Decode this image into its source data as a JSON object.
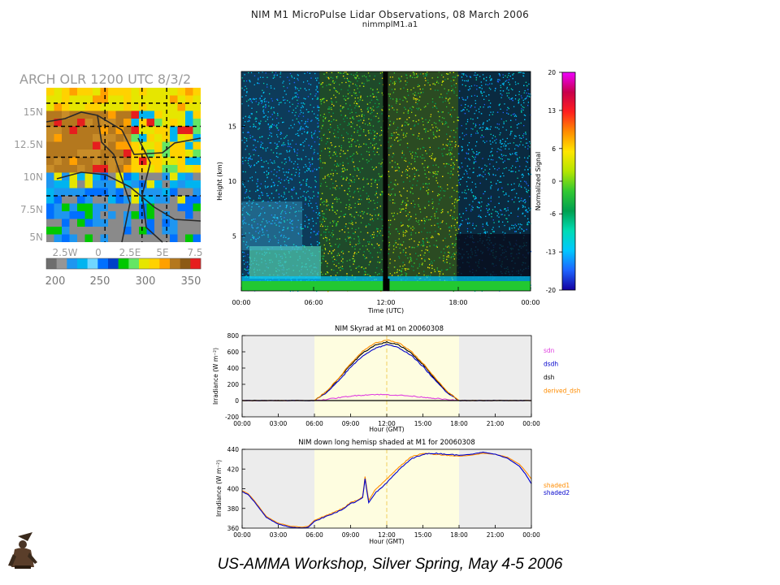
{
  "header": {
    "title": "NIM M1 MicroPulse Lidar Observations, 08 March 2006",
    "subtitle": "nimmplM1.a1"
  },
  "footer": {
    "text": "US-AMMA Workshop, Silver Spring, May 4-5 2006"
  },
  "olr_map": {
    "title": "ARCH OLR 1200 UTC 8/3/2",
    "lat_labels": [
      "15N",
      "12.5N",
      "10N",
      "7.5N",
      "5N"
    ],
    "lon_labels": [
      "2.5W",
      "0",
      "2.5E",
      "5E",
      "7.5"
    ],
    "colorbar_labels": [
      "200",
      "250",
      "300",
      "350"
    ],
    "colorbar_colors": [
      "#6e6e6e",
      "#969696",
      "#1e96f0",
      "#00b4f0",
      "#70d6ff",
      "#0070ff",
      "#0040c8",
      "#00c800",
      "#64e664",
      "#e6e600",
      "#ffd200",
      "#ffa000",
      "#b4781e",
      "#8c5a14",
      "#e61e1e"
    ]
  },
  "lidar": {
    "ylabel": "Height (km)",
    "xlabel": "Time (UTC)",
    "yticks": [
      "5",
      "10",
      "15"
    ],
    "xticks": [
      "00:00",
      "06:00",
      "12:00",
      "18:00",
      "00:00"
    ],
    "colorbar_label": "Normalized Signal",
    "colorbar_ticks": [
      "20",
      "13",
      "6",
      "0",
      "-6",
      "-13",
      "-20"
    ],
    "colorbar_colors": [
      "#f000ff",
      "#c8004b",
      "#ff1e1e",
      "#ff8c00",
      "#ffe600",
      "#b4e600",
      "#32c832",
      "#00a050",
      "#00dcb4",
      "#00c8ff",
      "#1e64ff",
      "#1400a0"
    ]
  },
  "chart_data": [
    {
      "type": "line",
      "title": "NIM Skyrad at M1 on 20060308",
      "xlabel": "Hour (GMT)",
      "ylabel": "Irradiance (W m⁻²)",
      "xlim": [
        0,
        24
      ],
      "ylim": [
        -200,
        800
      ],
      "xticks": [
        "00:00",
        "03:00",
        "06:00",
        "09:00",
        "12:00",
        "15:00",
        "18:00",
        "21:00",
        "00:00"
      ],
      "yticks": [
        "-200",
        "0",
        "200",
        "400",
        "600",
        "800"
      ],
      "series": [
        {
          "name": "sdn",
          "color": "#e040e0",
          "x": [
            0,
            6,
            7,
            8,
            9,
            10,
            11,
            12,
            13,
            14,
            15,
            16,
            17,
            18,
            24
          ],
          "values": [
            0,
            0,
            15,
            35,
            55,
            68,
            75,
            72,
            66,
            55,
            42,
            28,
            12,
            0,
            0
          ]
        },
        {
          "name": "dsdh",
          "color": "#0000cc",
          "x": [
            0,
            6,
            7,
            8,
            9,
            10,
            11,
            12,
            13,
            14,
            15,
            16,
            17,
            18,
            24
          ],
          "values": [
            0,
            0,
            95,
            240,
            410,
            550,
            640,
            690,
            650,
            560,
            420,
            250,
            100,
            0,
            0
          ]
        },
        {
          "name": "dsh",
          "color": "#000000",
          "x": [
            0,
            6,
            7,
            8,
            9,
            10,
            11,
            12,
            13,
            14,
            15,
            16,
            17,
            18,
            24
          ],
          "values": [
            0,
            0,
            110,
            265,
            440,
            585,
            680,
            720,
            685,
            590,
            445,
            270,
            110,
            0,
            0
          ]
        },
        {
          "name": "derived_dsh",
          "color": "#ff8c00",
          "x": [
            0,
            6,
            7,
            8,
            9,
            10,
            11,
            12,
            13,
            14,
            15,
            16,
            17,
            18,
            24
          ],
          "values": [
            0,
            0,
            115,
            275,
            455,
            605,
            705,
            745,
            710,
            610,
            460,
            280,
            115,
            0,
            0
          ]
        }
      ]
    },
    {
      "type": "line",
      "title": "NIM down long hemisp shaded at M1 for 20060308",
      "xlabel": "Hour (GMT)",
      "ylabel": "Irradiance (W m⁻²)",
      "xlim": [
        0,
        24
      ],
      "ylim": [
        360,
        440
      ],
      "xticks": [
        "00:00",
        "03:00",
        "06:00",
        "09:00",
        "12:00",
        "15:00",
        "18:00",
        "21:00",
        "00:00"
      ],
      "yticks": [
        "360",
        "380",
        "400",
        "420",
        "440"
      ],
      "series": [
        {
          "name": "shaded1",
          "color": "#ff8c00",
          "x": [
            0,
            0.5,
            1,
            2,
            3,
            4,
            5,
            5.5,
            6,
            7,
            8,
            8.5,
            9,
            9.5,
            10,
            10.2,
            10.5,
            11,
            12,
            13,
            14,
            15,
            16,
            17,
            18,
            19,
            20,
            21,
            22,
            23,
            23.5,
            24
          ],
          "values": [
            398,
            395,
            388,
            372,
            365,
            362,
            361,
            362,
            368,
            373,
            378,
            381,
            386,
            388,
            392,
            412,
            388,
            398,
            410,
            422,
            432,
            436,
            435,
            434,
            433,
            434,
            436,
            435,
            432,
            425,
            418,
            410
          ]
        },
        {
          "name": "shaded2",
          "color": "#0000cc",
          "x": [
            0,
            0.5,
            1,
            2,
            3,
            4,
            5,
            5.5,
            6,
            7,
            8,
            8.5,
            9,
            9.5,
            10,
            10.2,
            10.5,
            11,
            12,
            13,
            14,
            15,
            16,
            17,
            18,
            19,
            20,
            21,
            22,
            23,
            23.5,
            24
          ],
          "values": [
            397,
            394,
            387,
            371,
            364,
            361,
            360,
            361,
            367,
            372,
            377,
            380,
            385,
            387,
            391,
            410,
            386,
            395,
            406,
            419,
            430,
            435,
            436,
            435,
            434,
            435,
            437,
            435,
            431,
            423,
            415,
            405
          ]
        }
      ]
    }
  ]
}
